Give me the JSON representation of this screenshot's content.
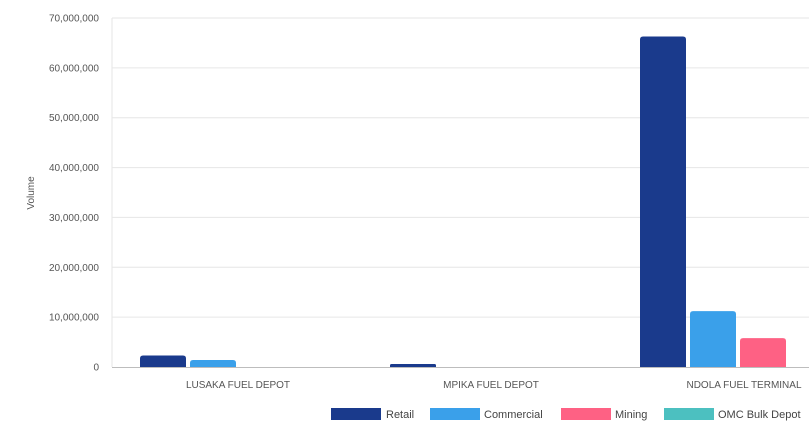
{
  "chart_data": {
    "type": "bar",
    "title": "",
    "xlabel": "",
    "ylabel": "Volume",
    "ylim": [
      0,
      70000000
    ],
    "yticks": [
      0,
      10000000,
      20000000,
      30000000,
      40000000,
      50000000,
      60000000,
      70000000
    ],
    "ytick_labels": [
      "0",
      "10,000,000",
      "20,000,000",
      "30,000,000",
      "40,000,000",
      "50,000,000",
      "60,000,000",
      "70,000,000"
    ],
    "categories": [
      "LUSAKA FUEL DEPOT",
      "MPIKA FUEL DEPOT",
      "NDOLA FUEL TERMINAL"
    ],
    "series": [
      {
        "name": "Retail",
        "color": "#1a3a8c",
        "values": [
          2300000,
          600000,
          66300000
        ]
      },
      {
        "name": "Commercial",
        "color": "#3aa0ea",
        "values": [
          1400000,
          0,
          11200000
        ]
      },
      {
        "name": "Mining",
        "color": "#fe6184",
        "values": [
          0,
          0,
          5800000
        ]
      },
      {
        "name": "OMC Bulk Depot",
        "color": "#4cc0c0",
        "values": [
          0,
          0,
          0
        ]
      }
    ],
    "grid": true,
    "legend_position": "bottom-right"
  }
}
